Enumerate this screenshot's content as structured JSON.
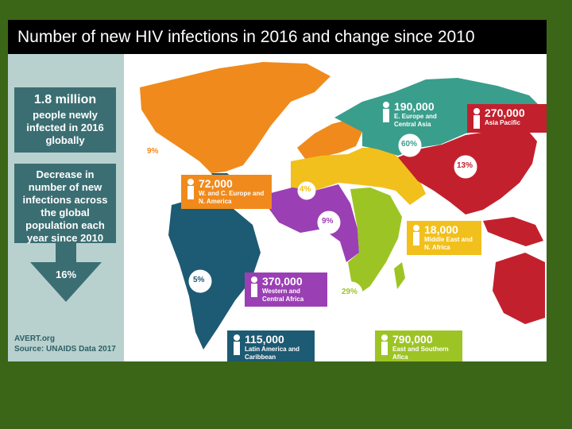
{
  "title": "Number of new HIV infections in 2016 and change since 2010",
  "sidebar": {
    "total_value": "1.8 million",
    "total_desc": "people newly infected in 2016 globally",
    "decrease_desc": "Decrease in number of new infections across the global population each year since 2010",
    "decrease_pct": "16%",
    "source_line1": "AVERT.org",
    "source_line2": "Source: UNAIDS Data 2017"
  },
  "regions": [
    {
      "id": "eeca",
      "value": "190,000",
      "name": "E. Europe and Central Asia",
      "change": "60%",
      "color": "#3a9e8c"
    },
    {
      "id": "ap",
      "value": "270,000",
      "name": "Asia Pacific",
      "change": "13%",
      "color": "#c3202e"
    },
    {
      "id": "wce",
      "value": "72,000",
      "name": "W. and C. Europe and N. America",
      "change": "9%",
      "change2": "4%",
      "color": "#f08a1c"
    },
    {
      "id": "wca",
      "value": "370,000",
      "name": "Western and Central Africa",
      "change": "9%",
      "color": "#9b3fb5"
    },
    {
      "id": "la",
      "value": "115,000",
      "name": "Latin America and Caribbean",
      "change": "5%",
      "color": "#1d5a73"
    },
    {
      "id": "mena",
      "value": "18,000",
      "name": "Middle East and N. Africa",
      "change": "",
      "color": "#f2c01c"
    },
    {
      "id": "esa",
      "value": "790,000",
      "name": "East and Southern Afica",
      "change": "29%",
      "color": "#9dc425"
    }
  ]
}
